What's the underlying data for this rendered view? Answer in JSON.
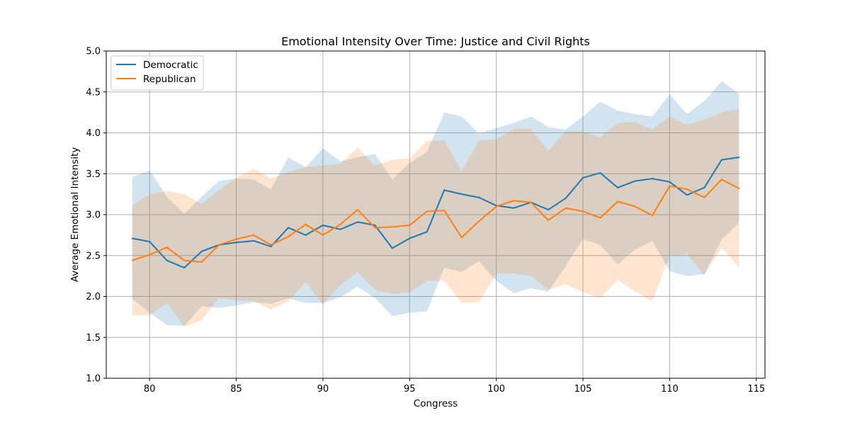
{
  "chart_data": {
    "type": "line",
    "title": "Emotional Intensity Over Time: Justice and Civil Rights",
    "xlabel": "Congress",
    "ylabel": "Average Emotional Intensity",
    "xlim": [
      77.5,
      115.5
    ],
    "ylim": [
      1.0,
      5.0
    ],
    "x_ticks": [
      "80",
      "85",
      "90",
      "95",
      "100",
      "105",
      "110",
      "115"
    ],
    "y_ticks": [
      "1.0",
      "1.5",
      "2.0",
      "2.5",
      "3.0",
      "3.5",
      "4.0",
      "4.5",
      "5.0"
    ],
    "grid": true,
    "legend_position": "top-left",
    "x": [
      79,
      80,
      81,
      82,
      83,
      84,
      85,
      86,
      87,
      88,
      89,
      90,
      91,
      92,
      93,
      94,
      95,
      96,
      97,
      98,
      99,
      100,
      101,
      102,
      103,
      104,
      105,
      106,
      107,
      108,
      109,
      110,
      111,
      112,
      113,
      114
    ],
    "series": [
      {
        "name": "Democratic",
        "color": "#1f77b4",
        "values": [
          2.71,
          2.67,
          2.44,
          2.35,
          2.55,
          2.63,
          2.66,
          2.68,
          2.61,
          2.84,
          2.75,
          2.87,
          2.82,
          2.91,
          2.87,
          2.59,
          2.71,
          2.79,
          3.3,
          3.25,
          3.21,
          3.11,
          3.08,
          3.15,
          3.06,
          3.2,
          3.45,
          3.51,
          3.33,
          3.41,
          3.44,
          3.4,
          3.24,
          3.33,
          3.67,
          3.7
        ],
        "upper": [
          3.46,
          3.54,
          3.22,
          3.01,
          3.22,
          3.41,
          3.44,
          3.43,
          3.31,
          3.7,
          3.58,
          3.81,
          3.65,
          3.7,
          3.74,
          3.43,
          3.63,
          3.77,
          4.25,
          4.2,
          3.99,
          4.06,
          4.12,
          4.2,
          4.07,
          4.04,
          4.2,
          4.38,
          4.27,
          4.23,
          4.2,
          4.47,
          4.23,
          4.39,
          4.63,
          4.48
        ],
        "lower": [
          1.97,
          1.8,
          1.65,
          1.64,
          1.88,
          1.86,
          1.89,
          1.93,
          1.91,
          1.98,
          1.92,
          1.92,
          1.99,
          2.12,
          1.98,
          1.76,
          1.8,
          1.82,
          2.35,
          2.3,
          2.43,
          2.19,
          2.04,
          2.1,
          2.06,
          2.37,
          2.7,
          2.63,
          2.39,
          2.57,
          2.68,
          2.31,
          2.25,
          2.27,
          2.7,
          2.9
        ]
      },
      {
        "name": "Republican",
        "color": "#ff7f0e",
        "values": [
          2.44,
          2.51,
          2.6,
          2.44,
          2.42,
          2.63,
          2.7,
          2.75,
          2.63,
          2.73,
          2.88,
          2.75,
          2.88,
          3.06,
          2.84,
          2.85,
          2.87,
          3.04,
          3.05,
          2.72,
          2.92,
          3.1,
          3.17,
          3.15,
          2.93,
          3.08,
          3.04,
          2.96,
          3.16,
          3.1,
          2.99,
          3.35,
          3.31,
          3.21,
          3.43,
          3.32
        ],
        "upper": [
          3.11,
          3.25,
          3.29,
          3.25,
          3.13,
          3.3,
          3.45,
          3.56,
          3.44,
          3.52,
          3.58,
          3.6,
          3.62,
          3.82,
          3.6,
          3.67,
          3.69,
          3.9,
          3.91,
          3.53,
          3.91,
          3.92,
          4.05,
          4.05,
          3.78,
          4.02,
          4.02,
          3.94,
          4.12,
          4.13,
          4.04,
          4.2,
          4.1,
          4.16,
          4.25,
          4.29
        ],
        "lower": [
          1.77,
          1.77,
          1.92,
          1.63,
          1.71,
          1.98,
          1.95,
          1.94,
          1.84,
          1.94,
          2.18,
          1.9,
          2.14,
          2.3,
          2.08,
          2.03,
          2.05,
          2.19,
          2.19,
          1.92,
          1.93,
          2.28,
          2.28,
          2.25,
          2.08,
          2.15,
          2.05,
          1.98,
          2.2,
          2.06,
          1.94,
          2.5,
          2.52,
          2.26,
          2.6,
          2.35
        ]
      }
    ]
  }
}
